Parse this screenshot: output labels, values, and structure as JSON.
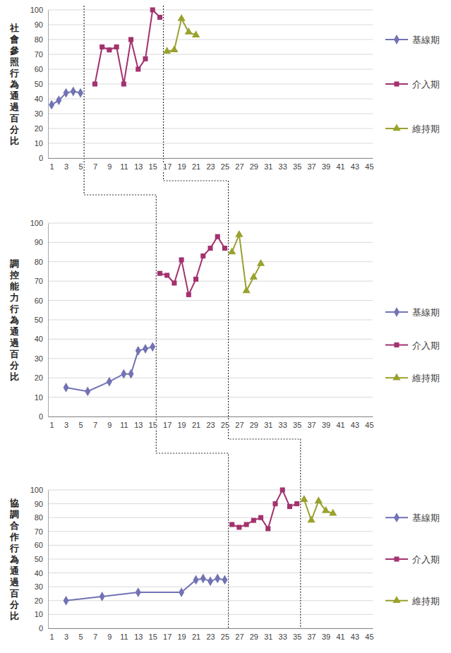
{
  "chart_data": [
    {
      "type": "line",
      "ylabel": "社會參照行為通過百分比",
      "xlim": [
        0.5,
        45.5
      ],
      "xticks": [
        1,
        3,
        5,
        7,
        9,
        11,
        13,
        15,
        17,
        19,
        21,
        23,
        25,
        27,
        29,
        31,
        33,
        35,
        37,
        39,
        41,
        43,
        45
      ],
      "ylim": [
        0,
        100
      ],
      "yticks": [
        0,
        10,
        20,
        30,
        40,
        50,
        60,
        70,
        80,
        90,
        100
      ],
      "grid": true,
      "legend": "right",
      "phase_changes": [
        5.5,
        16.5
      ],
      "series": [
        {
          "name": "基線期",
          "color": "#7272b4",
          "marker": "diamond",
          "x": [
            1,
            2,
            3,
            4,
            5
          ],
          "values": [
            36,
            39,
            44,
            45,
            44
          ]
        },
        {
          "name": "介入期",
          "color": "#a3326e",
          "marker": "square",
          "x": [
            7,
            8,
            9,
            10,
            11,
            12,
            13,
            14,
            15,
            16
          ],
          "values": [
            50,
            75,
            73,
            75,
            50,
            80,
            60,
            67,
            100,
            95
          ]
        },
        {
          "name": "維持期",
          "color": "#9aa22e",
          "marker": "triangle",
          "x": [
            17,
            18,
            19,
            20,
            21
          ],
          "values": [
            72,
            73,
            94,
            85,
            83
          ]
        }
      ]
    },
    {
      "type": "line",
      "ylabel": "調控能力行為通過百分比",
      "xlim": [
        0.5,
        45.5
      ],
      "xticks": [
        1,
        3,
        5,
        7,
        9,
        11,
        13,
        15,
        17,
        19,
        21,
        23,
        25,
        27,
        29,
        31,
        33,
        35,
        37,
        39,
        41,
        43,
        45
      ],
      "ylim": [
        0,
        100
      ],
      "yticks": [
        0,
        10,
        20,
        30,
        40,
        50,
        60,
        70,
        80,
        90,
        100
      ],
      "grid": true,
      "legend": "right",
      "phase_changes": [
        15.5,
        25.5
      ],
      "series": [
        {
          "name": "基線期",
          "color": "#7272b4",
          "marker": "diamond",
          "x": [
            3,
            6,
            9,
            11,
            12,
            13,
            14,
            15
          ],
          "values": [
            15,
            13,
            18,
            22,
            22,
            34,
            35,
            36
          ]
        },
        {
          "name": "介入期",
          "color": "#a3326e",
          "marker": "square",
          "x": [
            16,
            17,
            18,
            19,
            20,
            21,
            22,
            23,
            24,
            25
          ],
          "values": [
            74,
            73,
            69,
            81,
            63,
            71,
            83,
            87,
            93,
            87
          ]
        },
        {
          "name": "維持期",
          "color": "#9aa22e",
          "marker": "triangle",
          "x": [
            26,
            27,
            28,
            29,
            30
          ],
          "values": [
            85,
            94,
            65,
            72,
            79
          ]
        }
      ]
    },
    {
      "type": "line",
      "ylabel": "協調合作行為通過百分比",
      "xlim": [
        0.5,
        45.5
      ],
      "xticks": [
        1,
        3,
        5,
        7,
        9,
        11,
        13,
        15,
        17,
        19,
        21,
        23,
        25,
        27,
        29,
        31,
        33,
        35,
        37,
        39,
        41,
        43,
        45
      ],
      "ylim": [
        0,
        100
      ],
      "yticks": [
        0,
        10,
        20,
        30,
        40,
        50,
        60,
        70,
        80,
        90,
        100
      ],
      "grid": true,
      "legend": "right",
      "phase_changes": [
        25.5,
        35.5
      ],
      "series": [
        {
          "name": "基線期",
          "color": "#7272b4",
          "marker": "diamond",
          "x": [
            3,
            8,
            13,
            19,
            21,
            22,
            23,
            24,
            25
          ],
          "values": [
            20,
            23,
            26,
            26,
            35,
            36,
            34,
            36,
            35
          ]
        },
        {
          "name": "介入期",
          "color": "#a3326e",
          "marker": "square",
          "x": [
            26,
            27,
            28,
            29,
            30,
            31,
            32,
            33,
            34,
            35
          ],
          "values": [
            75,
            73,
            75,
            78,
            80,
            72,
            90,
            100,
            88,
            90
          ]
        },
        {
          "name": "維持期",
          "color": "#9aa22e",
          "marker": "triangle",
          "x": [
            36,
            37,
            38,
            39,
            40
          ],
          "values": [
            93,
            78,
            92,
            85,
            83
          ]
        }
      ]
    }
  ]
}
